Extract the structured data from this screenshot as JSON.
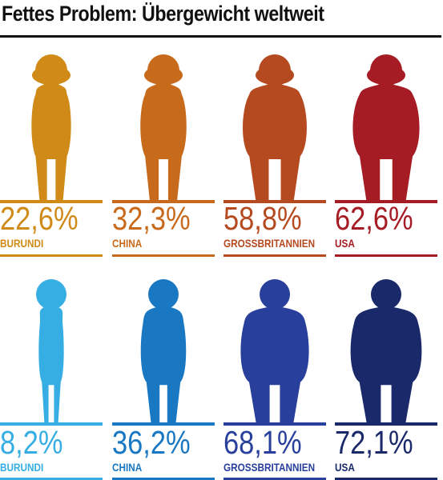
{
  "title": "Fettes Problem: Übergewicht weltweit",
  "chart_data": {
    "type": "pictograph",
    "categories": [
      "BURUNDI",
      "CHINA",
      "GROSSBRITANNIEN",
      "USA"
    ],
    "series": [
      {
        "values": [
          22.6,
          32.3,
          58.8,
          62.6
        ],
        "labels": [
          "22,6%",
          "32,3%",
          "58,8%",
          "62,6%"
        ],
        "colors": [
          "#d08a17",
          "#c86a1b",
          "#b54a21",
          "#a51c24"
        ],
        "figure": "female"
      },
      {
        "values": [
          8.2,
          36.2,
          68.1,
          72.1
        ],
        "labels": [
          "8,2%",
          "36,2%",
          "68,1%",
          "72,1%"
        ],
        "colors": [
          "#36aee3",
          "#1a78c2",
          "#283f9c",
          "#19296a"
        ],
        "figure": "male"
      }
    ]
  }
}
